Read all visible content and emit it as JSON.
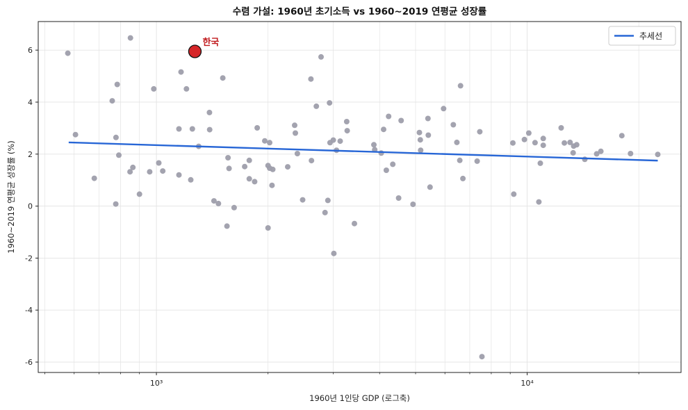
{
  "chart_data": {
    "type": "scatter",
    "title": "수렴 가설: 1960년 초기소득 vs 1960~2019 연평균 성장률",
    "xlabel": "1960년 1인당 GDP (로그축)",
    "ylabel": "1960~2019 연평균 성장률 (%)",
    "x_scale": "log",
    "xlim": [
      480,
      26000
    ],
    "ylim": [
      -6.4,
      7.1
    ],
    "x_ticks": [
      1000,
      10000
    ],
    "x_tick_labels": [
      "10³",
      "10⁴"
    ],
    "y_ticks": [
      -6,
      -4,
      -2,
      0,
      2,
      4,
      6
    ],
    "y_tick_labels": [
      "-6",
      "-4",
      "-2",
      "0",
      "2",
      "4",
      "6"
    ],
    "grid": true,
    "legend_position": "top-right",
    "legend": [
      {
        "label": "추세선",
        "color": "#2766d6"
      }
    ],
    "colors": {
      "points": "#9e9eab",
      "trend": "#2766d6",
      "highlight_fill": "#d62628",
      "highlight_text": "#c0191c"
    },
    "highlight": {
      "label": "한국",
      "x": 1270,
      "y": 5.95
    },
    "trendline": {
      "x": [
        580,
        22500
      ],
      "y": [
        2.45,
        1.75
      ]
    },
    "points": [
      [
        577,
        5.88
      ],
      [
        605,
        2.75
      ],
      [
        680,
        1.07
      ],
      [
        760,
        4.05
      ],
      [
        777,
        0.08
      ],
      [
        778,
        2.64
      ],
      [
        784,
        4.68
      ],
      [
        792,
        1.96
      ],
      [
        851,
        6.47
      ],
      [
        849,
        1.32
      ],
      [
        864,
        1.49
      ],
      [
        900,
        0.46
      ],
      [
        959,
        1.32
      ],
      [
        984,
        4.51
      ],
      [
        1015,
        1.66
      ],
      [
        1040,
        1.35
      ],
      [
        1150,
        1.2
      ],
      [
        1150,
        2.97
      ],
      [
        1165,
        5.16
      ],
      [
        1205,
        4.51
      ],
      [
        1238,
        1.01
      ],
      [
        1250,
        2.97
      ],
      [
        1300,
        2.3
      ],
      [
        1390,
        3.6
      ],
      [
        1392,
        2.94
      ],
      [
        1430,
        0.2
      ],
      [
        1470,
        0.1
      ],
      [
        1510,
        4.93
      ],
      [
        1550,
        -0.77
      ],
      [
        1560,
        1.86
      ],
      [
        1570,
        1.45
      ],
      [
        1620,
        -0.06
      ],
      [
        1730,
        1.52
      ],
      [
        1780,
        1.76
      ],
      [
        1780,
        1.05
      ],
      [
        1840,
        0.94
      ],
      [
        1870,
        3.01
      ],
      [
        1960,
        2.51
      ],
      [
        2000,
        -0.84
      ],
      [
        2000,
        1.56
      ],
      [
        2020,
        2.44
      ],
      [
        2020,
        1.46
      ],
      [
        2050,
        0.8
      ],
      [
        2060,
        1.41
      ],
      [
        2260,
        1.51
      ],
      [
        2360,
        3.11
      ],
      [
        2370,
        2.81
      ],
      [
        2400,
        2.02
      ],
      [
        2480,
        0.24
      ],
      [
        2610,
        4.89
      ],
      [
        2620,
        1.75
      ],
      [
        2700,
        3.84
      ],
      [
        2780,
        5.74
      ],
      [
        2850,
        -0.25
      ],
      [
        2900,
        0.22
      ],
      [
        2930,
        3.97
      ],
      [
        2940,
        2.44
      ],
      [
        3000,
        2.54
      ],
      [
        3010,
        -1.82
      ],
      [
        3060,
        2.15
      ],
      [
        3130,
        2.5
      ],
      [
        3260,
        3.25
      ],
      [
        3270,
        2.9
      ],
      [
        3420,
        -0.67
      ],
      [
        3860,
        2.36
      ],
      [
        3880,
        2.17
      ],
      [
        4040,
        2.04
      ],
      [
        4100,
        2.95
      ],
      [
        4170,
        1.38
      ],
      [
        4230,
        3.45
      ],
      [
        4340,
        1.61
      ],
      [
        4500,
        0.31
      ],
      [
        4570,
        3.29
      ],
      [
        4920,
        0.07
      ],
      [
        5120,
        2.83
      ],
      [
        5150,
        2.55
      ],
      [
        5160,
        2.15
      ],
      [
        5400,
        3.37
      ],
      [
        5410,
        2.73
      ],
      [
        5470,
        0.73
      ],
      [
        5950,
        3.75
      ],
      [
        6320,
        3.13
      ],
      [
        6460,
        2.45
      ],
      [
        6580,
        1.76
      ],
      [
        6610,
        4.63
      ],
      [
        6710,
        1.06
      ],
      [
        7330,
        1.73
      ],
      [
        7450,
        2.86
      ],
      [
        7550,
        -5.79
      ],
      [
        9150,
        2.43
      ],
      [
        9200,
        0.46
      ],
      [
        9830,
        2.56
      ],
      [
        10100,
        2.81
      ],
      [
        10500,
        2.44
      ],
      [
        10750,
        0.16
      ],
      [
        10850,
        1.65
      ],
      [
        11050,
        2.34
      ],
      [
        11050,
        2.6
      ],
      [
        12350,
        3.01
      ],
      [
        12600,
        2.43
      ],
      [
        13050,
        2.45
      ],
      [
        13300,
        2.05
      ],
      [
        13350,
        2.31
      ],
      [
        13600,
        2.36
      ],
      [
        14300,
        1.8
      ],
      [
        15400,
        2.01
      ],
      [
        15800,
        2.11
      ],
      [
        18000,
        2.71
      ],
      [
        19000,
        2.02
      ],
      [
        22500,
        1.99
      ]
    ]
  }
}
